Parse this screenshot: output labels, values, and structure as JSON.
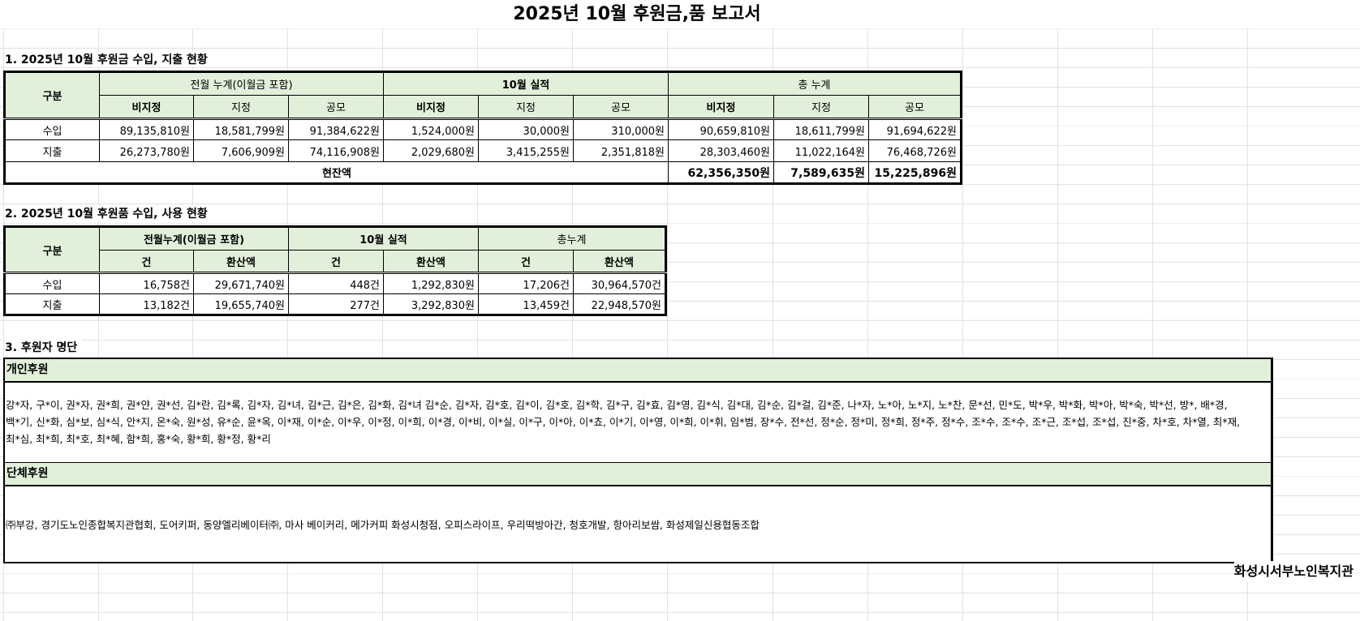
{
  "title": "2025년 10월 후원금,품 보고서",
  "section1": {
    "heading": "1. 2025년 10월 후원금 수입, 지출 현황",
    "col_label": "구분",
    "groups": [
      "전월 누계(이월금 포함)",
      "10월 실적",
      "총 누계"
    ],
    "subcols": [
      "비지정",
      "지정",
      "공모",
      "비지정",
      "지정",
      "공모",
      "비지정",
      "지정",
      "공모"
    ],
    "rows": [
      {
        "label": "수입",
        "values": [
          "89,135,810원",
          "18,581,799원",
          "91,384,622원",
          "1,524,000원",
          "30,000원",
          "310,000원",
          "90,659,810원",
          "18,611,799원",
          "91,694,622원"
        ]
      },
      {
        "label": "지출",
        "values": [
          "26,273,780원",
          "7,606,909원",
          "74,116,908원",
          "2,029,680원",
          "3,415,255원",
          "2,351,818원",
          "28,303,460원",
          "11,022,164원",
          "76,468,726원"
        ]
      }
    ],
    "balance_label": "현잔액",
    "balance": [
      "62,356,350원",
      "7,589,635원",
      "15,225,896원"
    ]
  },
  "section2": {
    "heading": "2. 2025년 10월 후원품 수입, 사용 현황",
    "col_label": "구분",
    "groups": [
      "전월누계(이월금 포함)",
      "10월 실적",
      "총누계"
    ],
    "subcols": [
      "건",
      "환산액",
      "건",
      "환산액",
      "건",
      "환산액"
    ],
    "rows": [
      {
        "label": "수입",
        "values": [
          "16,758건",
          "29,671,740원",
          "448건",
          "1,292,830원",
          "17,206건",
          "30,964,570건"
        ]
      },
      {
        "label": "지출",
        "values": [
          "13,182건",
          "19,655,740원",
          "277건",
          "3,292,830원",
          "13,459건",
          "22,948,570원"
        ]
      }
    ]
  },
  "section3": {
    "heading": "3. 후원자 명단",
    "individual_label": "개인후원",
    "individual_lines": [
      "강*자, 구*이, 권*자, 권*희, 권*얀, 권*선, 김*란, 김*록, 김*자, 김*녀, 김*근, 김*은, 김*화, 김*녀 김*순, 김*자, 김*호, 김*이, 김*호, 김*학, 김*구, 김*효, 김*영, 김*식, 김*대, 김*순, 김*걸, 김*준, 나*자, 노*아, 노*지, 노*찬, 문*선, 민*도, 박*우, 박*화, 박*아, 박*숙, 박*선, 방*, 배*경,",
      "백*기, 신*화, 심*보, 심*식, 안*지, 온*숙, 원*성, 유*순, 윤*옥, 이*재, 이*순, 이*우, 이*정, 이*희, 이*경, 이*비, 이*실, 이*구, 이*아, 이*쵸, 이*기, 이*영, 이*희, 이*휘, 임*범, 장*수, 전*선, 정*순, 정*미, 정*희, 정*주, 정*수, 조*수, 조*수, 조*근, 조*섭, 조*섭, 진*중, 차*호, 차*열, 최*재,",
      "최*심, 최*희, 최*호, 최*혜, 함*희, 홍*숙, 황*희, 황*정, 황*리"
    ],
    "group_label": "단체후원",
    "group_text": "㈜부강, 경기도노인종합복지관협회, 도어키퍼, 동양엘리베이터㈜, 마사 베이커리, 메가커피 화성시청점, 오피스라이프, 우리떡방아간, 청호개발, 항아리보쌈, 화성제일신용협동조합"
  },
  "footer": "화성시서부노인복지관"
}
